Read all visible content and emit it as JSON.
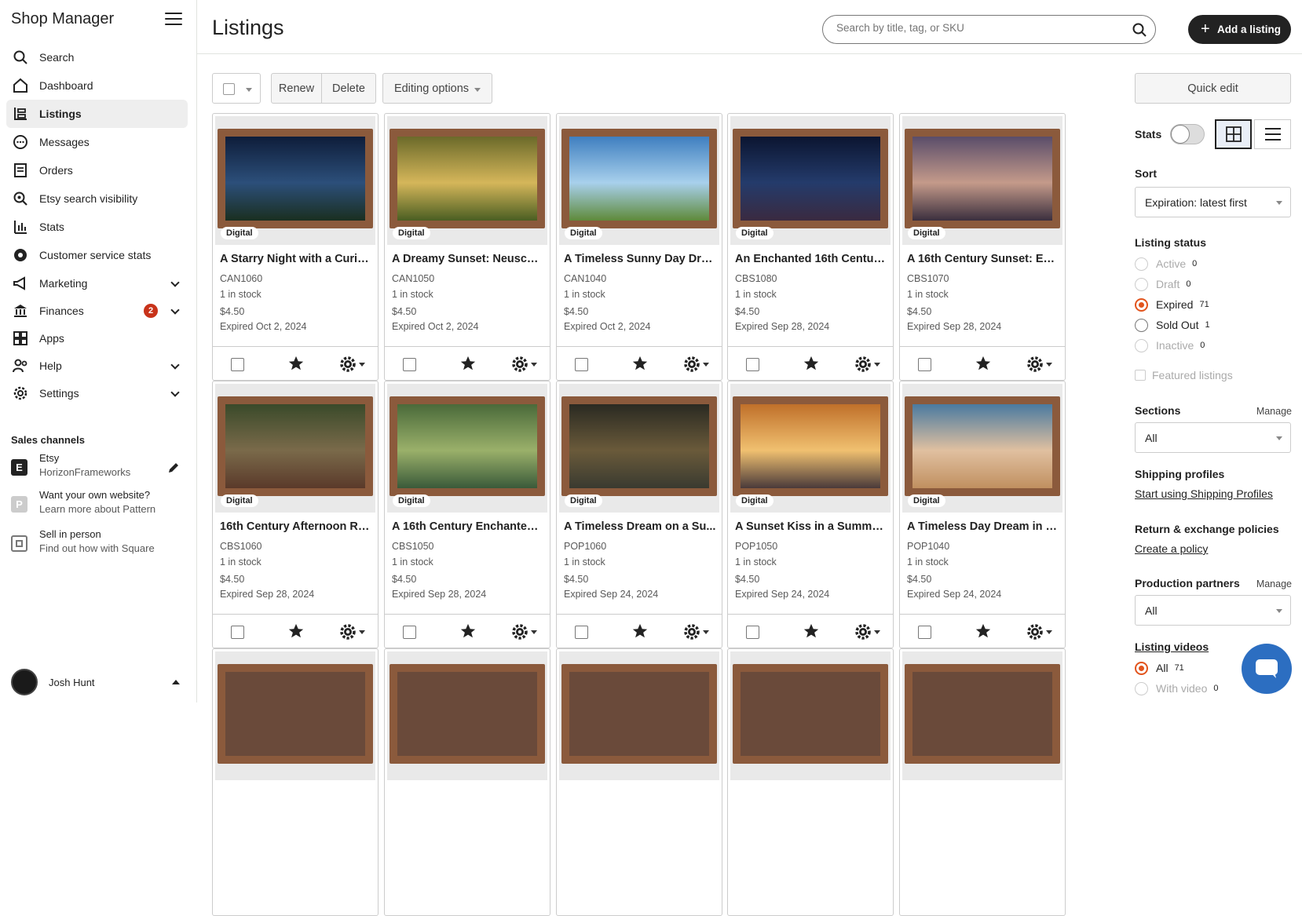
{
  "sidebar": {
    "title": "Shop Manager",
    "items": [
      {
        "label": "Search",
        "icon": "search-icon"
      },
      {
        "label": "Dashboard",
        "icon": "home-icon"
      },
      {
        "label": "Listings",
        "icon": "listings-icon",
        "active": true
      },
      {
        "label": "Messages",
        "icon": "messages-icon"
      },
      {
        "label": "Orders",
        "icon": "orders-icon"
      },
      {
        "label": "Etsy search visibility",
        "icon": "search-visibility-icon"
      },
      {
        "label": "Stats",
        "icon": "stats-icon"
      },
      {
        "label": "Customer service stats",
        "icon": "badge-icon"
      },
      {
        "label": "Marketing",
        "icon": "megaphone-icon",
        "expandable": true
      },
      {
        "label": "Finances",
        "icon": "bank-icon",
        "expandable": true,
        "badge": "2"
      },
      {
        "label": "Apps",
        "icon": "apps-icon"
      },
      {
        "label": "Help",
        "icon": "help-icon",
        "expandable": true
      },
      {
        "label": "Settings",
        "icon": "gear-icon",
        "expandable": true
      }
    ],
    "sales_channels_title": "Sales channels",
    "channels": [
      {
        "line1": "Etsy",
        "line2": "HorizonFrameworks",
        "icon_text": "E"
      },
      {
        "line1": "Want your own website?",
        "line2": "Learn more about Pattern",
        "icon_text": "P"
      },
      {
        "line1": "Sell in person",
        "line2": "Find out how with Square",
        "icon_text": ""
      }
    ],
    "user": "Josh Hunt"
  },
  "header": {
    "title": "Listings",
    "search_placeholder": "Search by title, tag, or SKU",
    "add_label": "Add a listing"
  },
  "toolbar": {
    "renew": "Renew",
    "delete": "Delete",
    "editing": "Editing options"
  },
  "listings": [
    {
      "title": "A Starry Night with a Curio...",
      "sku": "CAN1060",
      "stock": "1 in stock",
      "price": "$4.50",
      "expired": "Expired Oct 2, 2024",
      "tag": "Digital"
    },
    {
      "title": "A Dreamy Sunset: Neuschw...",
      "sku": "CAN1050",
      "stock": "1 in stock",
      "price": "$4.50",
      "expired": "Expired Oct 2, 2024",
      "tag": "Digital"
    },
    {
      "title": "A Timeless Sunny Day Drea...",
      "sku": "CAN1040",
      "stock": "1 in stock",
      "price": "$4.50",
      "expired": "Expired Oct 2, 2024",
      "tag": "Digital"
    },
    {
      "title": "An Enchanted 16th Century...",
      "sku": "CBS1080",
      "stock": "1 in stock",
      "price": "$4.50",
      "expired": "Expired Sep 28, 2024",
      "tag": "Digital"
    },
    {
      "title": "A 16th Century Sunset: Enc...",
      "sku": "CBS1070",
      "stock": "1 in stock",
      "price": "$4.50",
      "expired": "Expired Sep 28, 2024",
      "tag": "Digital"
    },
    {
      "title": "16th Century Afternoon Rai...",
      "sku": "CBS1060",
      "stock": "1 in stock",
      "price": "$4.50",
      "expired": "Expired Sep 28, 2024",
      "tag": "Digital"
    },
    {
      "title": "A 16th Century Enchanted J...",
      "sku": "CBS1050",
      "stock": "1 in stock",
      "price": "$4.50",
      "expired": "Expired Sep 28, 2024",
      "tag": "Digital"
    },
    {
      "title": "A Timeless Dream on a Su...",
      "sku": "POP1060",
      "stock": "1 in stock",
      "price": "$4.50",
      "expired": "Expired Sep 24, 2024",
      "tag": "Digital"
    },
    {
      "title": "A Sunset Kiss in a Summer ...",
      "sku": "POP1050",
      "stock": "1 in stock",
      "price": "$4.50",
      "expired": "Expired Sep 24, 2024",
      "tag": "Digital"
    },
    {
      "title": "A Timeless Day Dream in S...",
      "sku": "POP1040",
      "stock": "1 in stock",
      "price": "$4.50",
      "expired": "Expired Sep 24, 2024",
      "tag": "Digital"
    }
  ],
  "right": {
    "quick_edit": "Quick edit",
    "stats": "Stats",
    "sort_label": "Sort",
    "sort_value": "Expiration: latest first",
    "status_label": "Listing status",
    "statuses": [
      {
        "label": "Active",
        "count": "0",
        "state": "disabled"
      },
      {
        "label": "Draft",
        "count": "0",
        "state": "disabled"
      },
      {
        "label": "Expired",
        "count": "71",
        "state": "checked"
      },
      {
        "label": "Sold Out",
        "count": "1",
        "state": "normal"
      },
      {
        "label": "Inactive",
        "count": "0",
        "state": "disabled"
      }
    ],
    "featured": "Featured listings",
    "sections_label": "Sections",
    "manage": "Manage",
    "sections_value": "All",
    "shipping_label": "Shipping profiles",
    "shipping_link": "Start using Shipping Profiles",
    "returns_label": "Return & exchange policies",
    "returns_link": "Create a policy",
    "partners_label": "Production partners",
    "partners_value": "All",
    "videos_label": "Listing videos",
    "videos": [
      {
        "label": "All",
        "count": "71",
        "state": "checked"
      },
      {
        "label": "With video",
        "count": "0",
        "state": "disabled"
      }
    ]
  },
  "colors": {
    "accent": "#e2541d",
    "dark": "#222222",
    "badge": "#c8331a",
    "chat": "#2c6ec1"
  }
}
